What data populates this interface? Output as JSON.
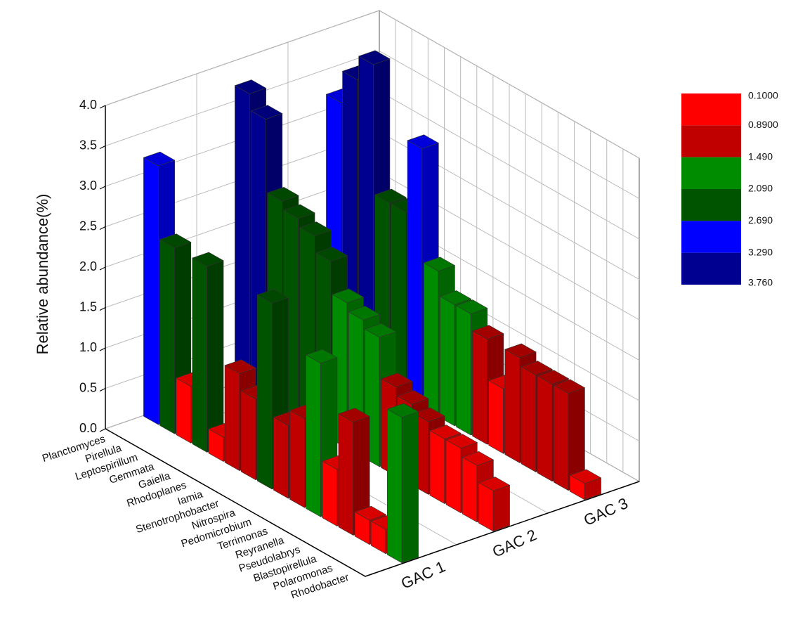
{
  "chart_data": {
    "type": "bar3d",
    "zlabel": "Relative abundance(%)",
    "categories": [
      "Planctomyces",
      "Pirellula",
      "Leptospirillum",
      "Gemmata",
      "Gaiella",
      "Rhodoplanes",
      "Iamia",
      "Stenotrophobacter",
      "Nitrospira",
      "Pedomicrobium",
      "Terrimonas",
      "Reyranella",
      "Pseudolabrys",
      "Blastopirellula",
      "Polaromonas",
      "Rhodobacter"
    ],
    "series": [
      {
        "name": "GAC 1",
        "values": [
          3.2,
          2.3,
          0.7,
          2.3,
          0.3,
          1.2,
          1.0,
          2.3,
          0.9,
          1.1,
          1.9,
          0.7,
          1.4,
          0.3,
          0.3,
          1.8
        ]
      },
      {
        "name": "GAC 2",
        "values": [
          3.7,
          3.5,
          2.6,
          2.5,
          2.4,
          2.2,
          1.8,
          1.7,
          1.6,
          1.1,
          1.0,
          0.9,
          0.8,
          0.8,
          0.7,
          0.5
        ]
      },
      {
        "name": "GAC 3",
        "values": [
          3.2,
          3.6,
          3.9,
          2.3,
          2.3,
          3.2,
          1.8,
          1.5,
          1.5,
          1.3,
          0.8,
          1.3,
          1.2,
          1.2,
          1.2,
          0.2
        ]
      }
    ],
    "zlim": [
      0,
      4
    ],
    "zticks": [
      {
        "value": 0,
        "label": "0.0"
      },
      0.5,
      {
        "value": 1,
        "label": "1.0"
      },
      1.5,
      {
        "value": 2,
        "label": "2.0"
      },
      2.5,
      {
        "value": 3,
        "label": "3.0"
      },
      3.5,
      {
        "value": 4,
        "label": "4.0"
      }
    ],
    "grid": true,
    "colorbar": {
      "levels": [
        {
          "value": 0.1,
          "label": "0.1000"
        },
        {
          "value": 0.89,
          "label": "0.8900"
        },
        {
          "value": 1.49,
          "label": "1.490"
        },
        {
          "value": 2.09,
          "label": "2.090"
        },
        {
          "value": 2.69,
          "label": "2.690"
        },
        {
          "value": 3.29,
          "label": "3.290"
        },
        {
          "value": 3.76,
          "label": "3.760"
        }
      ],
      "colors": [
        "#ff0000",
        "#c00000",
        "#008c00",
        "#005400",
        "#0000ff",
        "#000090"
      ]
    }
  }
}
